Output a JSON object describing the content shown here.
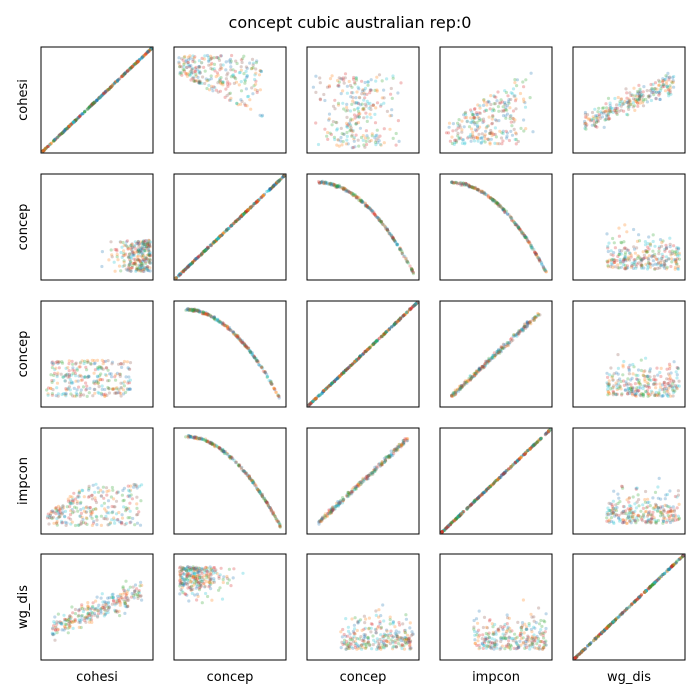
{
  "chart_data": {
    "type": "scatter",
    "layout": "scatter-matrix",
    "title": "concept cubic australian rep:0",
    "variables": [
      "cohesi",
      "concep",
      "concep",
      "impcon",
      "wg_dis"
    ],
    "row_labels": [
      "cohesi",
      "concep",
      "concep",
      "impcon",
      "wg_dis"
    ],
    "col_labels": [
      "cohesi",
      "concep",
      "concep",
      "impcon",
      "wg_dis"
    ],
    "axis_ticks": "none",
    "grid": false,
    "legend": "none",
    "colors": [
      "#1f77b4",
      "#ff7f0e",
      "#2ca02c",
      "#d62728",
      "#17becf",
      "#8c564b"
    ],
    "point_alpha": 0.06,
    "relationships": [
      [
        "identity",
        "decay",
        "spread-strips",
        "fan",
        "strips-corr"
      ],
      [
        "strips-left",
        "identity",
        "concave-down",
        "concave-down",
        "cloud-bottom"
      ],
      [
        "strips-bottom",
        "concave-down",
        "identity",
        "linear",
        "cloud-bottom"
      ],
      [
        "triangle-strips",
        "concave-down",
        "linear",
        "identity",
        "cloud-bottom"
      ],
      [
        "strips-corr",
        "cloud-top",
        "cloud-bottom",
        "cloud-bottom",
        "identity"
      ]
    ]
  }
}
